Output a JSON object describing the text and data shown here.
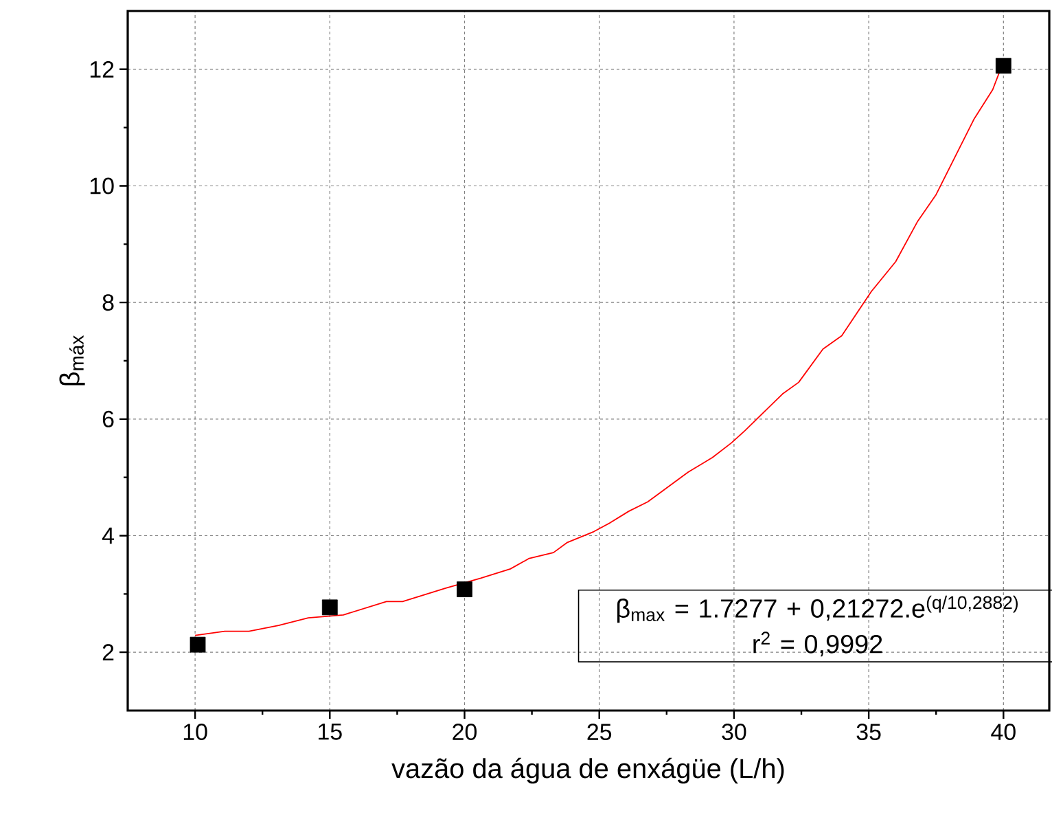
{
  "chart_data": {
    "type": "scatter",
    "xlabel": "vazão da água de enxágüe (L/h)",
    "ylabel": "β$_{máx}$",
    "xlim": [
      7.5,
      41.7
    ],
    "ylim": [
      1,
      13
    ],
    "xticks": [
      10,
      15,
      20,
      25,
      30,
      35,
      40
    ],
    "yticks": [
      2,
      4,
      6,
      8,
      10,
      12
    ],
    "grid": true,
    "series": [
      {
        "color": "#000000",
        "marker": "square",
        "x": [
          10.1,
          15,
          20,
          40
        ],
        "values": [
          2.13,
          2.77,
          3.08,
          12.06
        ]
      },
      {
        "type": "line",
        "color": "#ff0000",
        "marker": "none",
        "line_style": "solid",
        "x": [
          10.0,
          11.1,
          12.0,
          13.1,
          14.2,
          15.5,
          17.1,
          17.7,
          19.3,
          20.6,
          21.7,
          22.4,
          23.3,
          23.8,
          24.8,
          25.4,
          26.1,
          26.8,
          28.3,
          29.2,
          29.9,
          30.4,
          31.8,
          32.4,
          33.3,
          34.0,
          35.1,
          36.0,
          36.8,
          37.5,
          38.9,
          39.6,
          40.0
        ],
        "values": [
          2.29,
          2.36,
          2.36,
          2.46,
          2.59,
          2.64,
          2.87,
          2.87,
          3.1,
          3.27,
          3.43,
          3.61,
          3.71,
          3.88,
          4.07,
          4.22,
          4.42,
          4.58,
          5.09,
          5.34,
          5.59,
          5.8,
          6.43,
          6.63,
          7.2,
          7.43,
          8.19,
          8.7,
          9.38,
          9.85,
          11.14,
          11.65,
          12.13
        ]
      }
    ],
    "annotations": [
      "β$_{max}$ = 1.7277 + 0,21272.e$^{(q/10,2882)}$",
      "r$^{2}$ = 0,9992"
    ]
  }
}
